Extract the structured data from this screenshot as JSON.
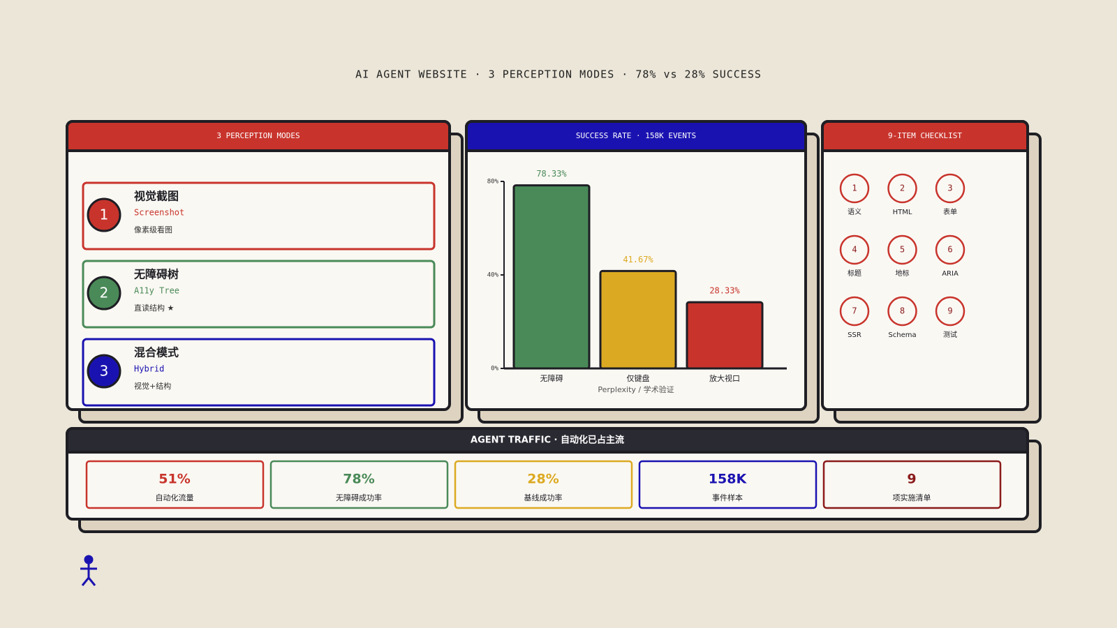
{
  "title": "AI AGENT WEBSITE · 3 PERCEPTION MODES · 78% vs 28% SUCCESS",
  "modes": {
    "header": "3 PERCEPTION MODES",
    "items": [
      {
        "number": "1",
        "name": "视觉截图",
        "en": "Screenshot",
        "desc": "像素级看图"
      },
      {
        "number": "2",
        "name": "无障碍树",
        "en": "A11y Tree",
        "desc": "直读结构 ★"
      },
      {
        "number": "3",
        "name": "混合模式",
        "en": "Hybrid",
        "desc": "视觉+结构"
      }
    ]
  },
  "chart_data": {
    "type": "bar",
    "title": "SUCCESS RATE · 158K EVENTS",
    "categories": [
      "无障碍",
      "仅键盘",
      "放大视口"
    ],
    "values": [
      78.33,
      41.67,
      28.33
    ],
    "value_labels": [
      "78.33%",
      "41.67%",
      "28.33%"
    ],
    "colors": [
      "#4a8a58",
      "#dcaa22",
      "#c8342c"
    ],
    "ylim": [
      0,
      80
    ],
    "yticks": [
      {
        "value": 0,
        "label": "0%"
      },
      {
        "value": 40,
        "label": "40%"
      },
      {
        "value": 80,
        "label": "80%"
      }
    ],
    "xlabel": "Perplexity / 学术验证"
  },
  "checklist": {
    "header": "9-ITEM CHECKLIST",
    "items": [
      {
        "number": "1",
        "label": "语义"
      },
      {
        "number": "2",
        "label": "HTML"
      },
      {
        "number": "3",
        "label": "表单"
      },
      {
        "number": "4",
        "label": "标题"
      },
      {
        "number": "5",
        "label": "地标"
      },
      {
        "number": "6",
        "label": "ARIA"
      },
      {
        "number": "7",
        "label": "SSR"
      },
      {
        "number": "8",
        "label": "Schema"
      },
      {
        "number": "9",
        "label": "测试"
      }
    ]
  },
  "traffic": {
    "header": "AGENT TRAFFIC · 自动化已占主流",
    "stats": [
      {
        "value": "51%",
        "label": "自动化流量"
      },
      {
        "value": "78%",
        "label": "无障碍成功率"
      },
      {
        "value": "28%",
        "label": "基线成功率"
      },
      {
        "value": "158K",
        "label": "事件样本"
      },
      {
        "value": "9",
        "label": "项实施清单"
      }
    ]
  }
}
